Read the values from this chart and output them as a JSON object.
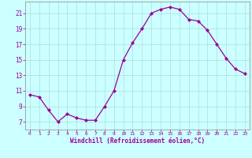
{
  "x": [
    0,
    1,
    2,
    3,
    4,
    5,
    6,
    7,
    8,
    9,
    10,
    11,
    12,
    13,
    14,
    15,
    16,
    17,
    18,
    19,
    20,
    21,
    22,
    23
  ],
  "y": [
    10.5,
    10.2,
    8.5,
    7.0,
    8.0,
    7.5,
    7.2,
    7.2,
    9.0,
    11.0,
    15.0,
    17.2,
    19.0,
    21.0,
    21.5,
    21.8,
    21.5,
    20.2,
    20.0,
    18.8,
    17.0,
    15.2,
    13.8,
    13.2
  ],
  "line_color": "#990099",
  "marker": "D",
  "marker_size": 2.0,
  "bg_color": "#ccffff",
  "grid_color": "#aadddd",
  "xlabel": "Windchill (Refroidissement éolien,°C)",
  "xlabel_color": "#990099",
  "tick_color": "#990099",
  "spine_color": "#888888",
  "xlim": [
    -0.5,
    23.5
  ],
  "ylim": [
    6.0,
    22.5
  ],
  "yticks": [
    7,
    9,
    11,
    13,
    15,
    17,
    19,
    21
  ],
  "xticks": [
    0,
    1,
    2,
    3,
    4,
    5,
    6,
    7,
    8,
    9,
    10,
    11,
    12,
    13,
    14,
    15,
    16,
    17,
    18,
    19,
    20,
    21,
    22,
    23
  ],
  "xtick_fontsize": 4.5,
  "ytick_fontsize": 5.5,
  "xlabel_fontsize": 5.5,
  "linewidth": 0.9
}
